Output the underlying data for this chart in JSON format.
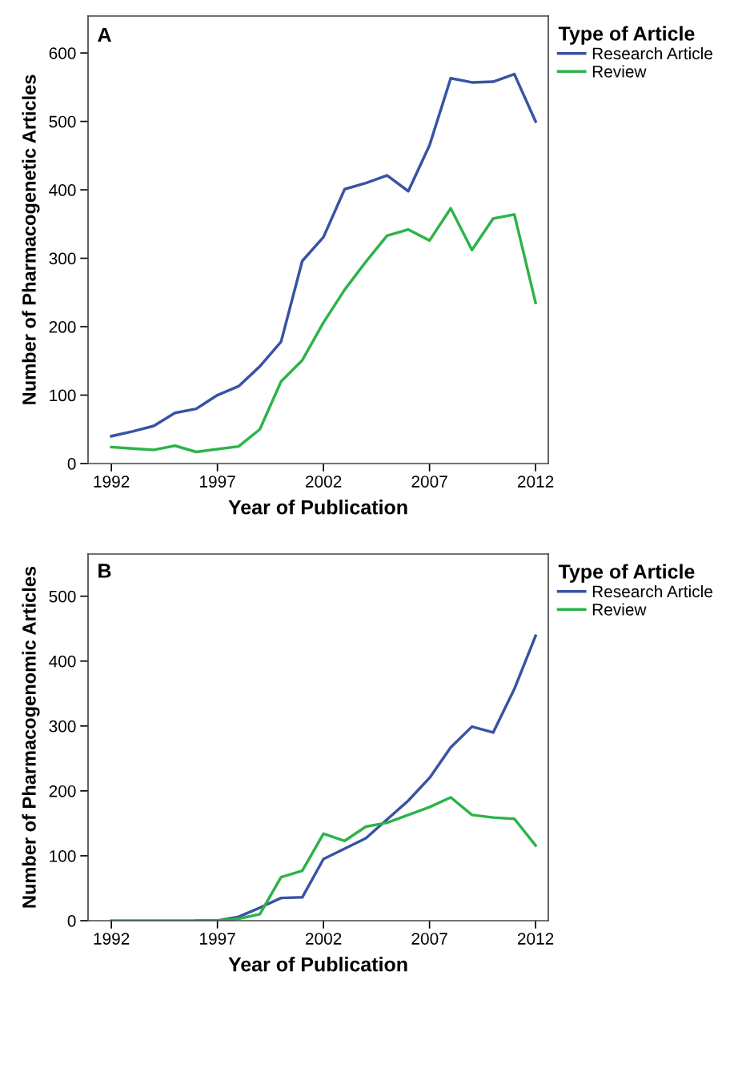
{
  "chart_data": [
    {
      "type": "line",
      "annotations": [
        "A"
      ],
      "xlabel": "Year of Publication",
      "ylabel": "Number of Pharmacogenetic Articles",
      "legend_title": "Type of Article",
      "legend": "top right",
      "grid": false,
      "marker": "none",
      "line_style": "solid",
      "x": [
        1992,
        1993,
        1994,
        1995,
        1996,
        1997,
        1998,
        1999,
        2000,
        2001,
        2002,
        2003,
        2004,
        2005,
        2006,
        2007,
        2008,
        2009,
        2010,
        2011,
        2012
      ],
      "xlim": [
        1990.9,
        2012.6
      ],
      "xticks": [
        1992,
        1997,
        2002,
        2007,
        2012
      ],
      "ylim": [
        0,
        654
      ],
      "yticks": [
        0,
        100,
        200,
        300,
        400,
        500,
        600
      ],
      "series": [
        {
          "name": "Research Article",
          "color": "#3953a4",
          "values": [
            40,
            47,
            55,
            74,
            80,
            100,
            113,
            142,
            178,
            296,
            331,
            401,
            410,
            421,
            398,
            465,
            563,
            557,
            558,
            569,
            500
          ]
        },
        {
          "name": "Review",
          "color": "#2db34a",
          "values": [
            24,
            22,
            20,
            26,
            17,
            21,
            25,
            50,
            120,
            151,
            206,
            254,
            295,
            333,
            342,
            326,
            373,
            312,
            358,
            364,
            235
          ]
        }
      ]
    },
    {
      "type": "line",
      "annotations": [
        "B"
      ],
      "xlabel": "Year of Publication",
      "ylabel": "Number of Pharmacogenomic Articles",
      "legend_title": "Type of Article",
      "legend": "top right",
      "grid": false,
      "marker": "none",
      "line_style": "solid",
      "x": [
        1992,
        1993,
        1994,
        1995,
        1996,
        1997,
        1998,
        1999,
        2000,
        2001,
        2002,
        2003,
        2004,
        2005,
        2006,
        2007,
        2008,
        2009,
        2010,
        2011,
        2012
      ],
      "xlim": [
        1990.9,
        2012.6
      ],
      "xticks": [
        1992,
        1997,
        2002,
        2007,
        2012
      ],
      "ylim": [
        0,
        565
      ],
      "yticks": [
        0,
        100,
        200,
        300,
        400,
        500
      ],
      "series": [
        {
          "name": "Research Article",
          "color": "#3953a4",
          "values": [
            null,
            null,
            null,
            null,
            0,
            0,
            6,
            20,
            35,
            36,
            95,
            111,
            127,
            156,
            185,
            220,
            267,
            299,
            290,
            357,
            439
          ]
        },
        {
          "name": "Review",
          "color": "#2db34a",
          "values": [
            0,
            0,
            0,
            0,
            0,
            0,
            3,
            10,
            67,
            77,
            134,
            123,
            145,
            151,
            163,
            175,
            190,
            163,
            159,
            157,
            116
          ]
        }
      ]
    }
  ]
}
